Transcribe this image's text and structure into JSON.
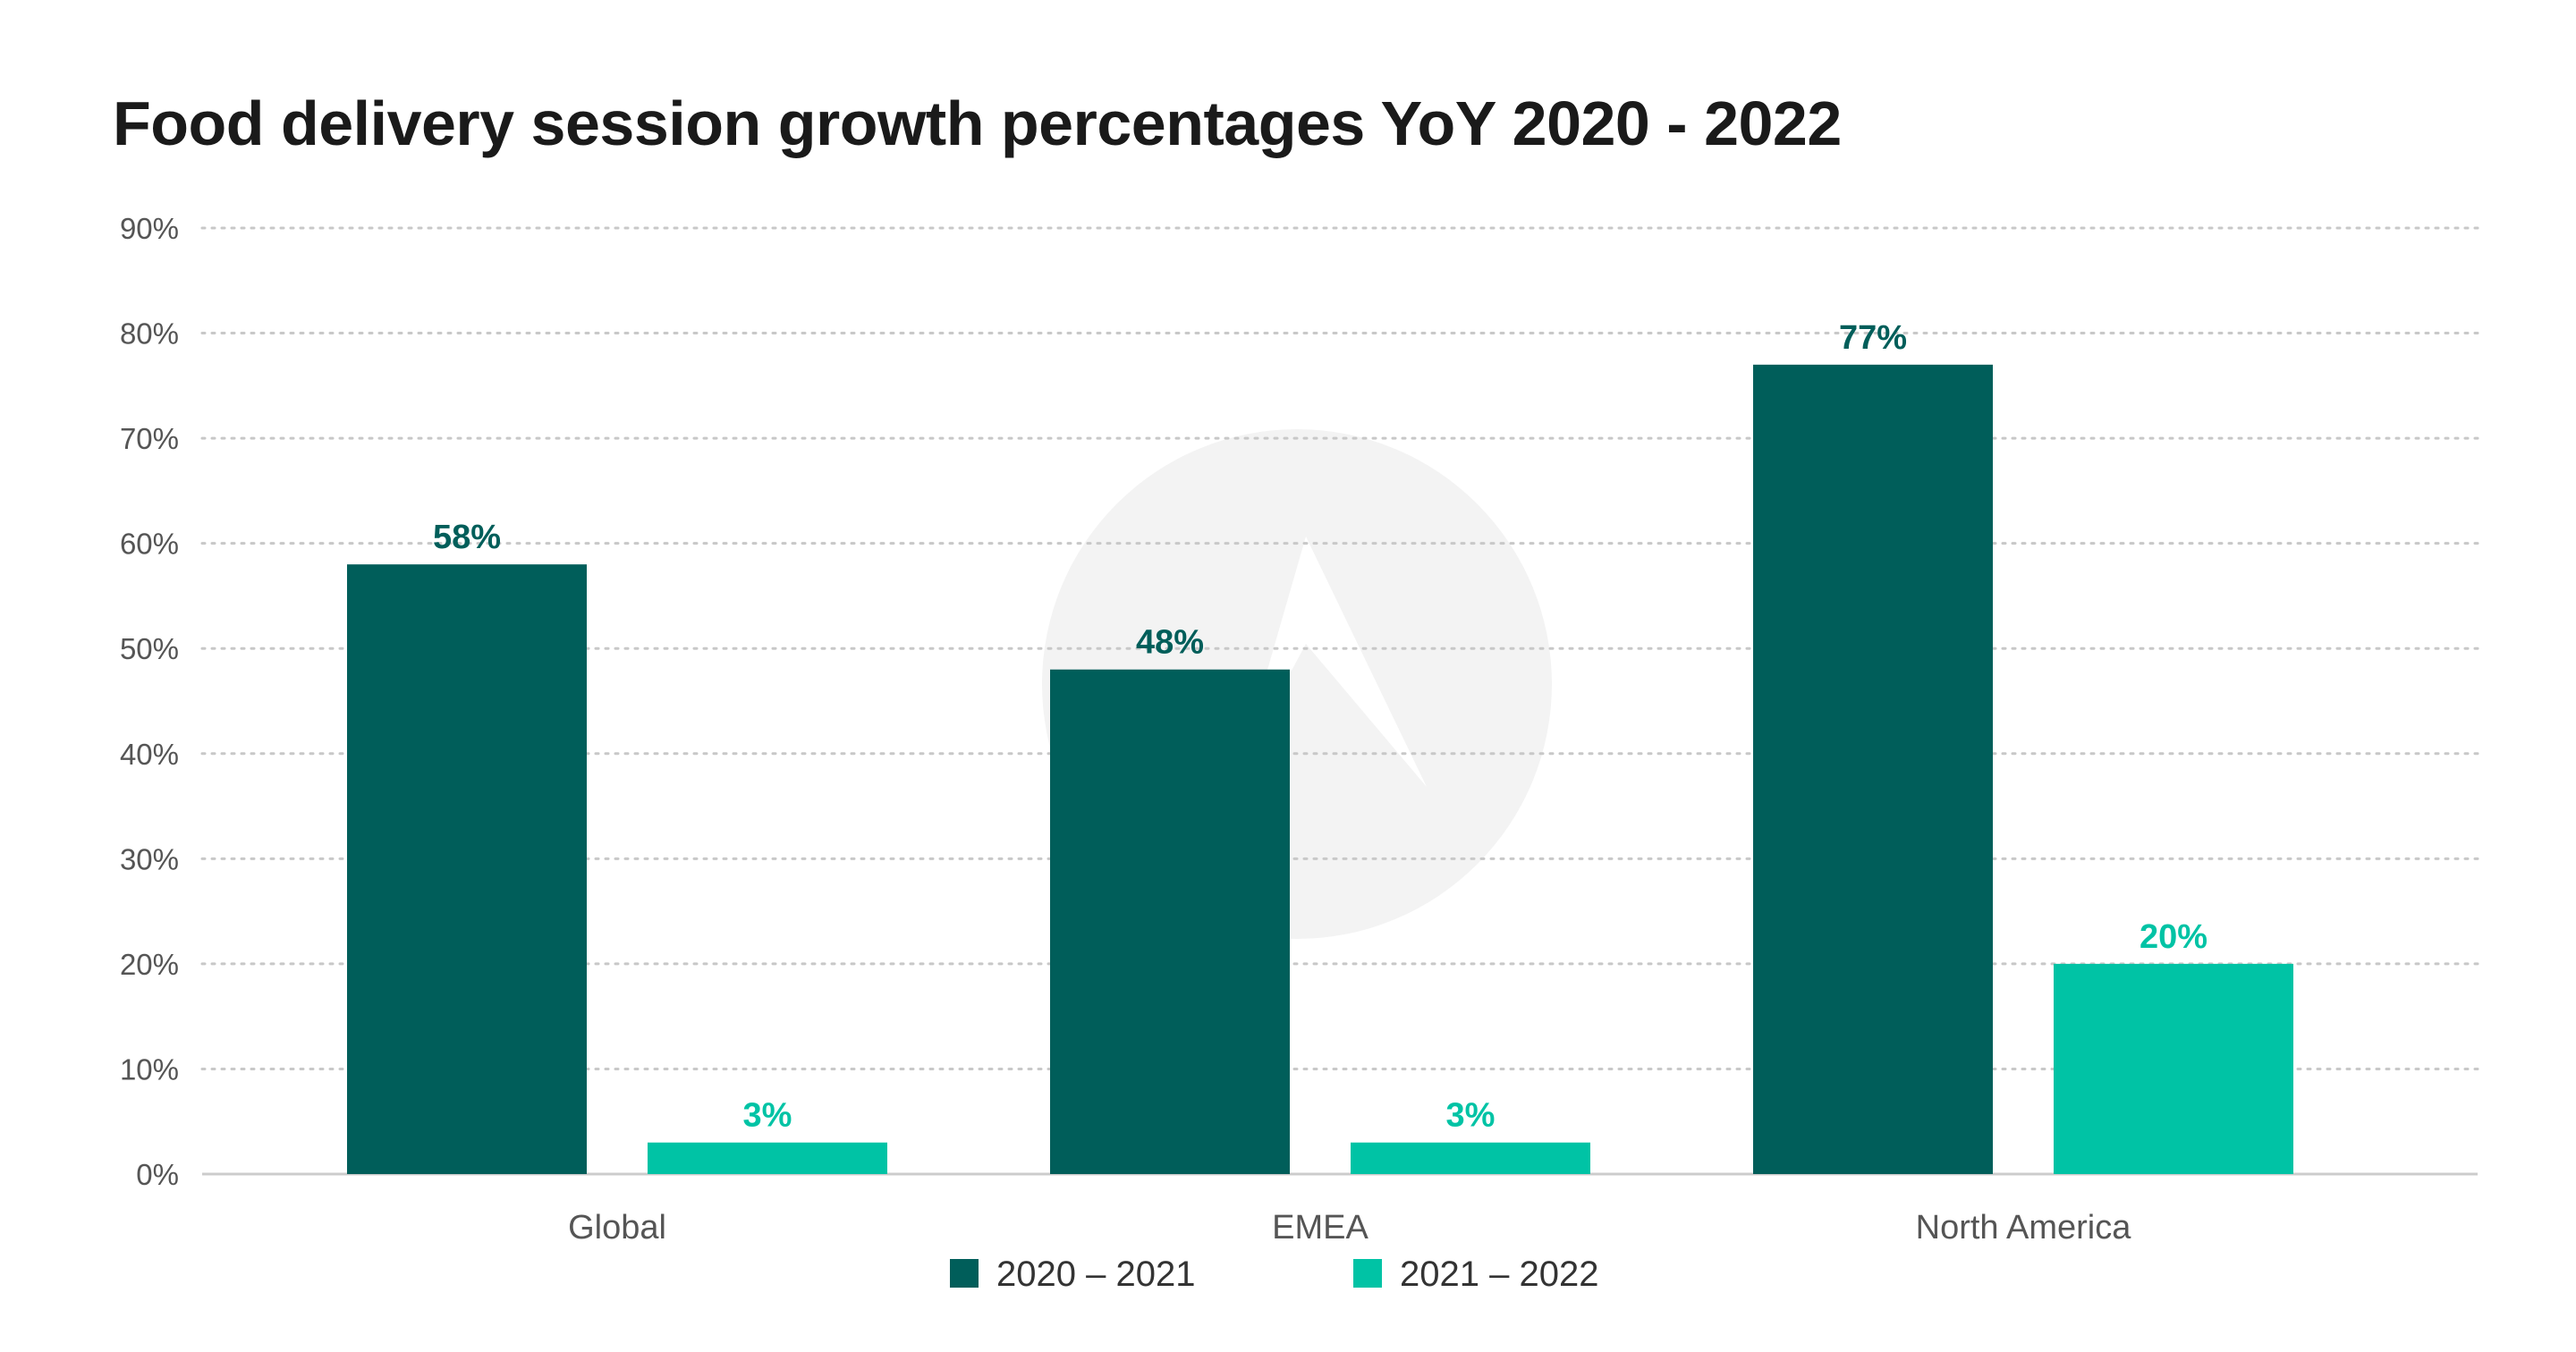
{
  "chart_data": {
    "type": "bar",
    "title": "Food delivery session growth percentages YoY 2020 - 2022",
    "categories": [
      "Global",
      "EMEA",
      "North America"
    ],
    "series": [
      {
        "name": "2020 – 2021",
        "color": "#005e5a",
        "values": [
          58,
          48,
          77
        ],
        "labels": [
          "58%",
          "48%",
          "77%"
        ]
      },
      {
        "name": "2021 – 2022",
        "color": "#00c3a5",
        "values": [
          3,
          3,
          20
        ],
        "labels": [
          "3%",
          "3%",
          "20%"
        ]
      }
    ],
    "ylim": [
      0,
      90
    ],
    "yticks": [
      0,
      10,
      20,
      30,
      40,
      50,
      60,
      70,
      80,
      90
    ],
    "ytick_labels": [
      "0%",
      "10%",
      "20%",
      "30%",
      "40%",
      "50%",
      "60%",
      "70%",
      "80%",
      "90%"
    ],
    "grid": true,
    "legend": "bottom-center"
  }
}
